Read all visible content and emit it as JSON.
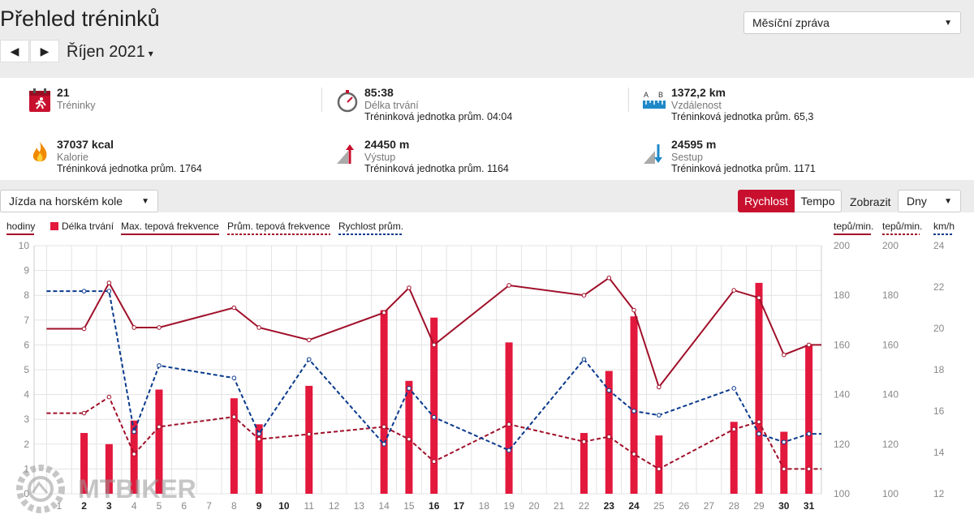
{
  "page_title": "Přehled tréninků",
  "nav": {
    "prev_icon": "◀",
    "next_icon": "▶",
    "month": "Říjen 2021",
    "month_caret": "▾"
  },
  "report_select": {
    "value": "Měsíční zpráva",
    "arrow": "▼"
  },
  "stats": [
    {
      "icon": "calendar-run-icon",
      "value": "21",
      "label": "Tréninky",
      "sub": ""
    },
    {
      "icon": "stopwatch-icon",
      "value": "85:38",
      "label": "Délka trvání",
      "sub": "Tréninková jednotka prům. 04:04"
    },
    {
      "icon": "ruler-distance-icon",
      "value": "1372,2 km",
      "label": "Vzdálenost",
      "sub": "Tréninková jednotka prům. 65,3"
    },
    {
      "icon": "flame-icon",
      "value": "37037 kcal",
      "label": "Kalorie",
      "sub": "Tréninková jednotka prům. 1764"
    },
    {
      "icon": "ascent-icon",
      "value": "24450 m",
      "label": "Výstup",
      "sub": "Tréninková jednotka prům. 1164"
    },
    {
      "icon": "descent-icon",
      "value": "24595 m",
      "label": "Sestup",
      "sub": "Tréninková jednotka prům. 1171"
    }
  ],
  "activity_select": {
    "value": "Jízda na horském kole",
    "arrow": "▼"
  },
  "toggle": {
    "speed": "Rychlost",
    "pace": "Tempo"
  },
  "show": {
    "label": "Zobrazit",
    "value": "Dny",
    "arrow": "▼"
  },
  "colors": {
    "accent": "#c8102e",
    "bar": "#e2183d",
    "max_hr": "#a0102a",
    "speed": "#0a3a8c",
    "grid": "#d8d8d8"
  },
  "watermark": "MTBIKER",
  "chart_data": {
    "type": "bar",
    "legend": {
      "hours": "hodiny",
      "duration": "Délka trvání",
      "max_hr": "Max. tepová frekvence",
      "avg_hr": "Prům. tepová frekvence",
      "avg_speed": "Rychlost prům."
    },
    "right_axis_labels": [
      "tepů/min.",
      "tepů/min.",
      "km/h"
    ],
    "y_left": {
      "ticks": [
        "10",
        "9",
        "8",
        "7",
        "6",
        "5",
        "4",
        "3",
        "2",
        "1",
        "0"
      ],
      "range": [
        0,
        10
      ]
    },
    "y_hr_max": {
      "ticks": [
        "200",
        "180",
        "160",
        "140",
        "120",
        "100"
      ],
      "range": [
        100,
        200
      ]
    },
    "y_hr_avg": {
      "ticks": [
        "200",
        "180",
        "160",
        "140",
        "120",
        "100"
      ],
      "range": [
        100,
        200
      ]
    },
    "y_speed": {
      "ticks": [
        "24",
        "22",
        "20",
        "18",
        "16",
        "14",
        "12"
      ],
      "range": [
        12,
        24
      ]
    },
    "x": {
      "days": [
        "1",
        "2",
        "3",
        "4",
        "5",
        "6",
        "7",
        "8",
        "9",
        "10",
        "11",
        "12",
        "13",
        "14",
        "15",
        "16",
        "17",
        "18",
        "19",
        "20",
        "21",
        "22",
        "23",
        "24",
        "25",
        "26",
        "27",
        "28",
        "29",
        "30",
        "31"
      ],
      "bold": [
        "2",
        "3",
        "9",
        "10",
        "16",
        "17",
        "23",
        "24",
        "30",
        "31"
      ]
    },
    "series": [
      {
        "name": "Délka trvání",
        "kind": "bar",
        "points": [
          [
            2,
            2.45
          ],
          [
            3,
            2.0
          ],
          [
            4,
            2.95
          ],
          [
            5,
            4.2
          ],
          [
            8,
            3.85
          ],
          [
            9,
            2.8
          ],
          [
            11,
            4.35
          ],
          [
            14,
            7.4
          ],
          [
            15,
            4.55
          ],
          [
            16,
            7.1
          ],
          [
            19,
            6.1
          ],
          [
            22,
            2.45
          ],
          [
            23,
            4.95
          ],
          [
            24,
            7.15
          ],
          [
            25,
            2.35
          ],
          [
            28,
            2.9
          ],
          [
            29,
            8.5
          ],
          [
            30,
            2.5
          ],
          [
            31,
            6.0
          ]
        ]
      },
      {
        "name": "Max. tepová frekvence",
        "kind": "line",
        "axis": "hr",
        "points": [
          [
            0.5,
            166.5
          ],
          [
            2,
            166.5
          ],
          [
            3,
            185
          ],
          [
            4,
            167
          ],
          [
            5,
            167
          ],
          [
            8,
            175
          ],
          [
            9,
            167
          ],
          [
            11,
            162
          ],
          [
            14,
            173
          ],
          [
            15,
            183
          ],
          [
            16,
            160
          ],
          [
            19,
            184
          ],
          [
            22,
            180
          ],
          [
            23,
            187
          ],
          [
            24,
            174
          ],
          [
            25,
            143
          ],
          [
            28,
            182
          ],
          [
            29,
            179
          ],
          [
            30,
            156
          ],
          [
            31,
            160
          ],
          [
            31.5,
            160
          ]
        ]
      },
      {
        "name": "Prům. tepová frekvence",
        "kind": "line",
        "dashed": true,
        "axis": "hr",
        "points": [
          [
            0.5,
            132.5
          ],
          [
            2,
            132.5
          ],
          [
            3,
            139
          ],
          [
            4,
            116
          ],
          [
            5,
            127
          ],
          [
            8,
            131
          ],
          [
            9,
            122
          ],
          [
            11,
            124
          ],
          [
            14,
            127
          ],
          [
            15,
            122
          ],
          [
            16,
            113
          ],
          [
            19,
            128
          ],
          [
            22,
            121
          ],
          [
            23,
            123
          ],
          [
            24,
            116
          ],
          [
            25,
            110
          ],
          [
            28,
            126
          ],
          [
            29,
            129
          ],
          [
            30,
            110
          ],
          [
            31,
            110
          ],
          [
            31.5,
            110
          ]
        ]
      },
      {
        "name": "Rychlost prům.",
        "kind": "line",
        "dashed": true,
        "axis": "speed",
        "points": [
          [
            0.5,
            21.8
          ],
          [
            2,
            21.8
          ],
          [
            3,
            21.8
          ],
          [
            4,
            15.0
          ],
          [
            5,
            18.2
          ],
          [
            8,
            17.6
          ],
          [
            9,
            14.9
          ],
          [
            11,
            18.5
          ],
          [
            14,
            14.4
          ],
          [
            15,
            17.1
          ],
          [
            16,
            15.7
          ],
          [
            19,
            14.1
          ],
          [
            22,
            18.5
          ],
          [
            23,
            17.0
          ],
          [
            24,
            16.0
          ],
          [
            25,
            15.8
          ],
          [
            28,
            17.1
          ],
          [
            29,
            14.9
          ],
          [
            30,
            14.5
          ],
          [
            31,
            14.9
          ],
          [
            31.5,
            14.9
          ]
        ]
      }
    ]
  }
}
